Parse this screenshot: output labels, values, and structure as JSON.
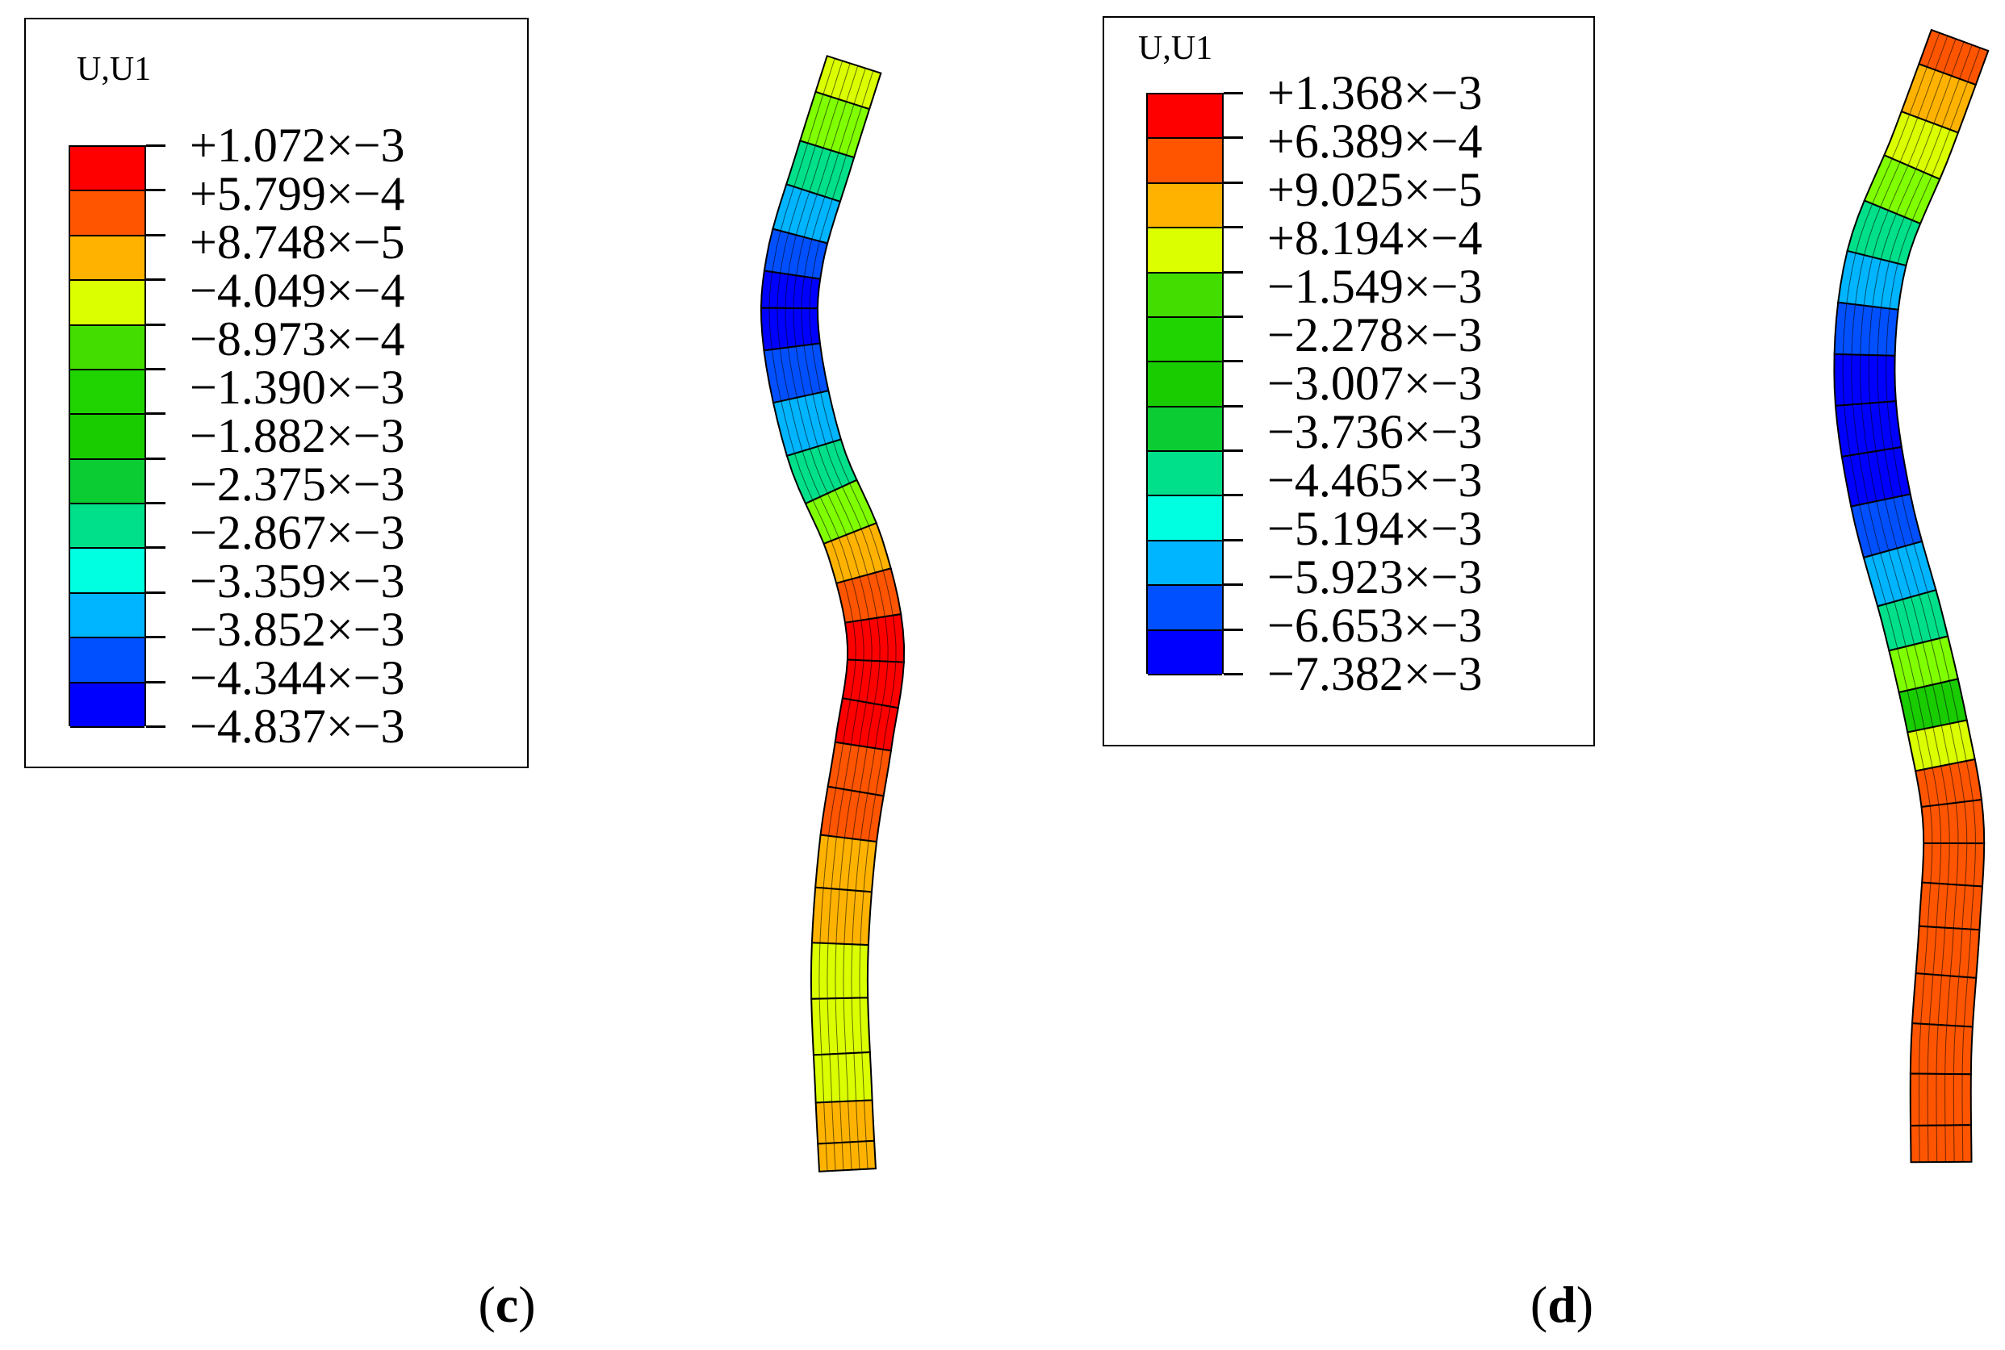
{
  "panels": [
    {
      "id": "c",
      "label": "c",
      "legend": {
        "title": "U,U1",
        "values": [
          "+1.072×−3",
          "+5.799×−4",
          "+8.748×−5",
          "−4.049×−4",
          "−8.973×−4",
          "−1.390×−3",
          "−1.882×−3",
          "−2.375×−3",
          "−2.867×−3",
          "−3.359×−3",
          "−3.852×−3",
          "−4.344×−3",
          "−4.837×−3"
        ],
        "colors": [
          "#ff0000",
          "#ff5500",
          "#ffb300",
          "#dcff00",
          "#44dd00",
          "#1fd400",
          "#19cc00",
          "#0ccc33",
          "#00e08a",
          "#00ffe0",
          "#00b5ff",
          "#0050ff",
          "#0000ff"
        ]
      }
    },
    {
      "id": "d",
      "label": "d",
      "legend": {
        "title": "U,U1",
        "values": [
          "+1.368×−3",
          "+6.389×−4",
          "+9.025×−5",
          "+8.194×−4",
          "−1.549×−3",
          "−2.278×−3",
          "−3.007×−3",
          "−3.736×−3",
          "−4.465×−3",
          "−5.194×−3",
          "−5.923×−3",
          "−6.653×−3",
          "−7.382×−3"
        ],
        "colors": [
          "#ff0000",
          "#ff5500",
          "#ffb300",
          "#dcff00",
          "#44dd00",
          "#1fd400",
          "#19cc00",
          "#0ccc33",
          "#00e08a",
          "#00ffe0",
          "#00b5ff",
          "#0050ff",
          "#0000ff"
        ]
      }
    }
  ],
  "model_c_colors": [
    "#dcff00",
    "#80ff00",
    "#00e08a",
    "#00b5ff",
    "#0050ff",
    "#0000ff",
    "#0000ff",
    "#0050ff",
    "#00b5ff",
    "#00e08a",
    "#80ff00",
    "#ffb300",
    "#ff5500",
    "#ff0000",
    "#ff0000",
    "#ff0000",
    "#ff5500",
    "#ff5500",
    "#ffb300",
    "#ffb300",
    "#dcff00",
    "#dcff00",
    "#dcff00",
    "#ffb300",
    "#ffb300"
  ],
  "model_d_colors": [
    "#ff5500",
    "#ffb300",
    "#dcff00",
    "#80ff00",
    "#00e08a",
    "#00b5ff",
    "#0050ff",
    "#0000ff",
    "#0000ff",
    "#0000ff",
    "#0050ff",
    "#00b5ff",
    "#00e08a",
    "#80ff00",
    "#19cc00",
    "#dcff00",
    "#ff5500",
    "#ff5500",
    "#ff5500",
    "#ff5500",
    "#ff5500",
    "#ff5500",
    "#ff5500",
    "#ff5500",
    "#ff5500"
  ]
}
